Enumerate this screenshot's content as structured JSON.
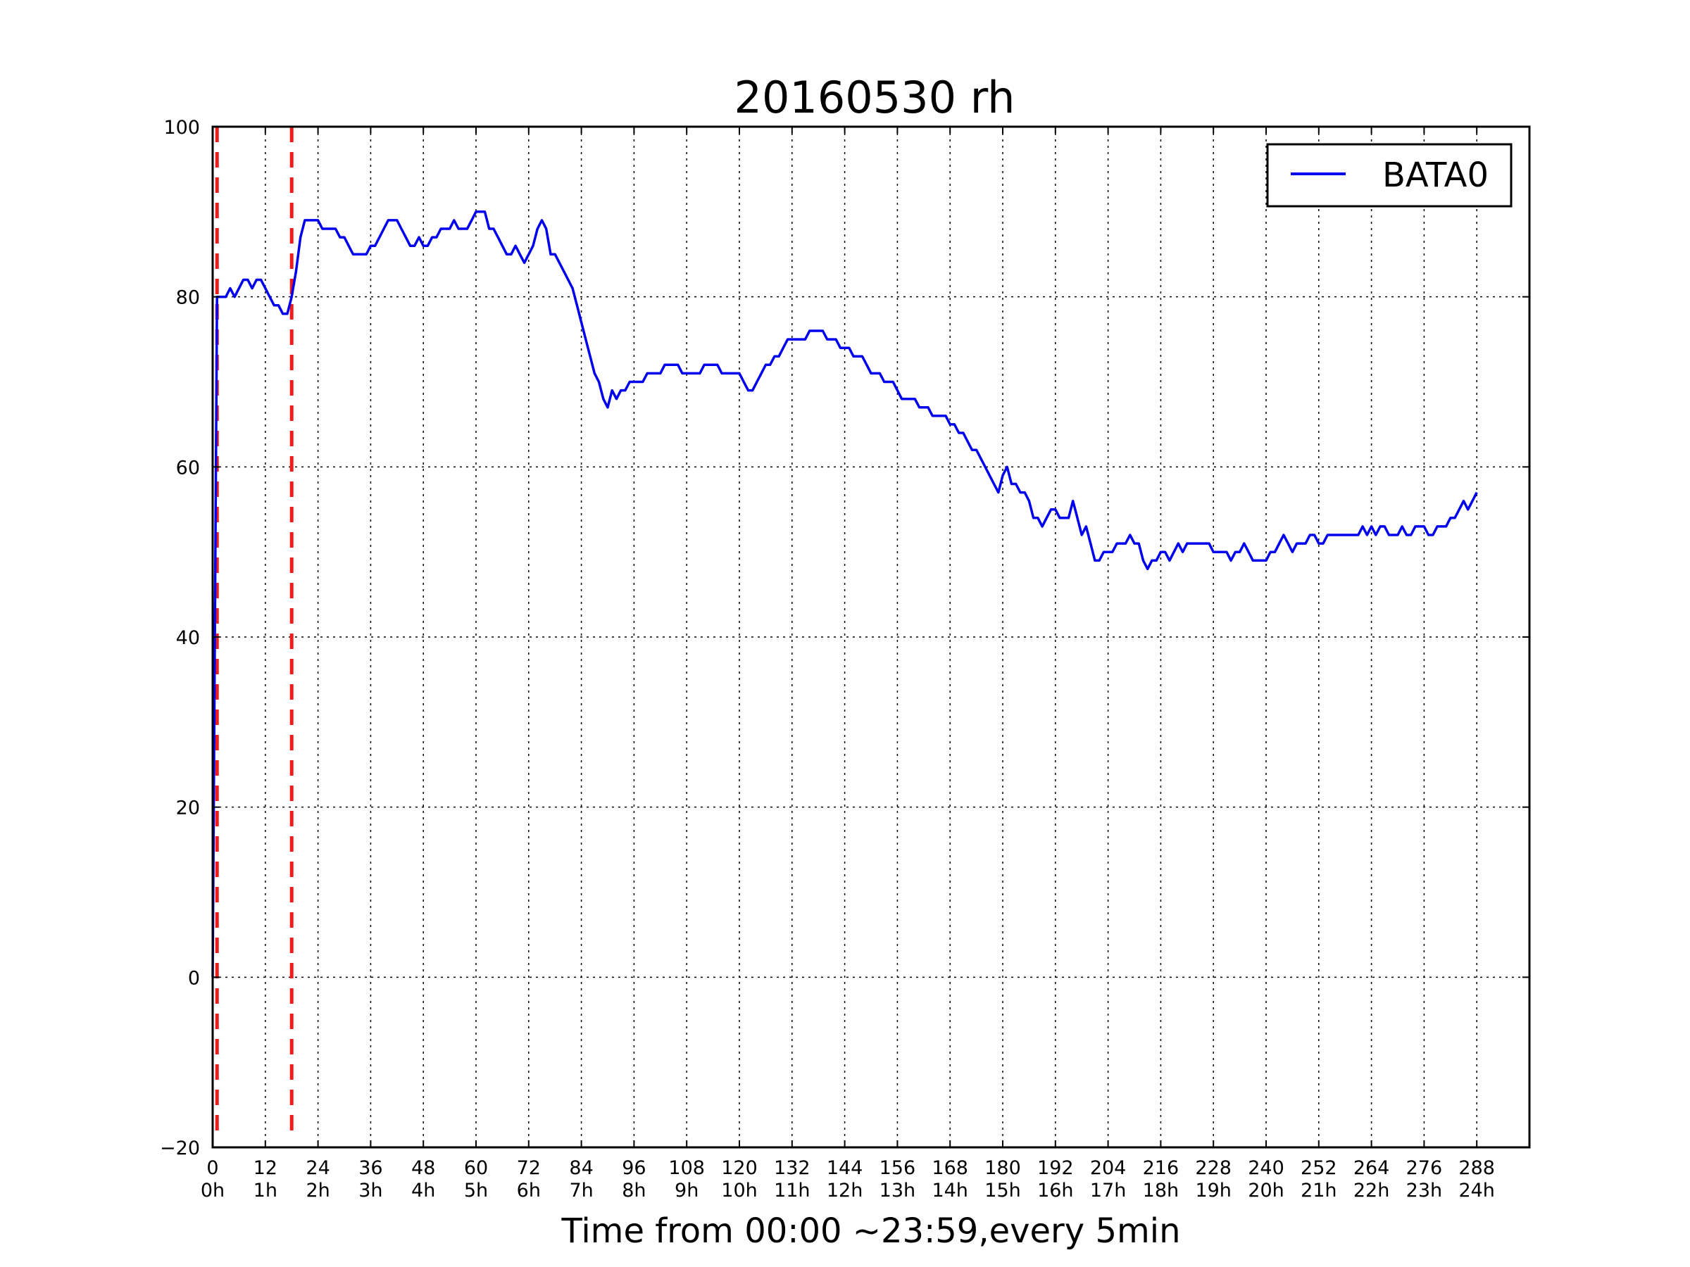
{
  "chart_data": {
    "type": "line",
    "title": "20160530 rh",
    "xlabel": "Time from 00:00 ~23:59,every 5min",
    "ylabel": "",
    "xlim": [
      0,
      300
    ],
    "ylim": [
      -20,
      100
    ],
    "grid": true,
    "legend": {
      "placement": "top-right"
    },
    "x_ticks": [
      {
        "value": 0,
        "label": "0",
        "sublabel": "0h"
      },
      {
        "value": 12,
        "label": "12",
        "sublabel": "1h"
      },
      {
        "value": 24,
        "label": "24",
        "sublabel": "2h"
      },
      {
        "value": 36,
        "label": "36",
        "sublabel": "3h"
      },
      {
        "value": 48,
        "label": "48",
        "sublabel": "4h"
      },
      {
        "value": 60,
        "label": "60",
        "sublabel": "5h"
      },
      {
        "value": 72,
        "label": "72",
        "sublabel": "6h"
      },
      {
        "value": 84,
        "label": "84",
        "sublabel": "7h"
      },
      {
        "value": 96,
        "label": "96",
        "sublabel": "8h"
      },
      {
        "value": 108,
        "label": "108",
        "sublabel": "9h"
      },
      {
        "value": 120,
        "label": "120",
        "sublabel": "10h"
      },
      {
        "value": 132,
        "label": "132",
        "sublabel": "11h"
      },
      {
        "value": 144,
        "label": "144",
        "sublabel": "12h"
      },
      {
        "value": 156,
        "label": "156",
        "sublabel": "13h"
      },
      {
        "value": 168,
        "label": "168",
        "sublabel": "14h"
      },
      {
        "value": 180,
        "label": "180",
        "sublabel": "15h"
      },
      {
        "value": 192,
        "label": "192",
        "sublabel": "16h"
      },
      {
        "value": 204,
        "label": "204",
        "sublabel": "17h"
      },
      {
        "value": 216,
        "label": "216",
        "sublabel": "18h"
      },
      {
        "value": 228,
        "label": "228",
        "sublabel": "19h"
      },
      {
        "value": 240,
        "label": "240",
        "sublabel": "20h"
      },
      {
        "value": 252,
        "label": "252",
        "sublabel": "21h"
      },
      {
        "value": 264,
        "label": "264",
        "sublabel": "22h"
      },
      {
        "value": 276,
        "label": "276",
        "sublabel": "23h"
      },
      {
        "value": 288,
        "label": "288",
        "sublabel": "24h"
      }
    ],
    "y_ticks": [
      {
        "value": -20,
        "label": "−20"
      },
      {
        "value": 0,
        "label": "0"
      },
      {
        "value": 20,
        "label": "20"
      },
      {
        "value": 40,
        "label": "40"
      },
      {
        "value": 60,
        "label": "60"
      },
      {
        "value": 80,
        "label": "80"
      },
      {
        "value": 100,
        "label": "100"
      }
    ],
    "vlines": [
      {
        "x": 1,
        "color": "#ee1c1c",
        "style": "dashed"
      },
      {
        "x": 18,
        "color": "#ee1c1c",
        "style": "dashed"
      }
    ],
    "series": [
      {
        "name": "BATA0",
        "color": "#0000ee",
        "points": [
          [
            0,
            0
          ],
          [
            1,
            80
          ],
          [
            2,
            80
          ],
          [
            3,
            80
          ],
          [
            4,
            81
          ],
          [
            5,
            80
          ],
          [
            6,
            81
          ],
          [
            7,
            82
          ],
          [
            8,
            82
          ],
          [
            9,
            81
          ],
          [
            10,
            82
          ],
          [
            11,
            82
          ],
          [
            12,
            81
          ],
          [
            13,
            80
          ],
          [
            14,
            79
          ],
          [
            15,
            79
          ],
          [
            16,
            78
          ],
          [
            17,
            78
          ],
          [
            18,
            80
          ],
          [
            19,
            83
          ],
          [
            20,
            87
          ],
          [
            21,
            89
          ],
          [
            22,
            89
          ],
          [
            23,
            89
          ],
          [
            24,
            89
          ],
          [
            25,
            88
          ],
          [
            26,
            88
          ],
          [
            27,
            88
          ],
          [
            28,
            88
          ],
          [
            29,
            87
          ],
          [
            30,
            87
          ],
          [
            31,
            86
          ],
          [
            32,
            85
          ],
          [
            33,
            85
          ],
          [
            34,
            85
          ],
          [
            35,
            85
          ],
          [
            36,
            86
          ],
          [
            37,
            86
          ],
          [
            38,
            87
          ],
          [
            39,
            88
          ],
          [
            40,
            89
          ],
          [
            41,
            89
          ],
          [
            42,
            89
          ],
          [
            43,
            88
          ],
          [
            44,
            87
          ],
          [
            45,
            86
          ],
          [
            46,
            86
          ],
          [
            47,
            87
          ],
          [
            48,
            86
          ],
          [
            49,
            86
          ],
          [
            50,
            87
          ],
          [
            51,
            87
          ],
          [
            52,
            88
          ],
          [
            53,
            88
          ],
          [
            54,
            88
          ],
          [
            55,
            89
          ],
          [
            56,
            88
          ],
          [
            57,
            88
          ],
          [
            58,
            88
          ],
          [
            59,
            89
          ],
          [
            60,
            90
          ],
          [
            61,
            90
          ],
          [
            62,
            90
          ],
          [
            63,
            88
          ],
          [
            64,
            88
          ],
          [
            65,
            87
          ],
          [
            66,
            86
          ],
          [
            67,
            85
          ],
          [
            68,
            85
          ],
          [
            69,
            86
          ],
          [
            70,
            85
          ],
          [
            71,
            84
          ],
          [
            72,
            85
          ],
          [
            73,
            86
          ],
          [
            74,
            88
          ],
          [
            75,
            89
          ],
          [
            76,
            88
          ],
          [
            77,
            85
          ],
          [
            78,
            85
          ],
          [
            79,
            84
          ],
          [
            80,
            83
          ],
          [
            81,
            82
          ],
          [
            82,
            81
          ],
          [
            83,
            79
          ],
          [
            84,
            77
          ],
          [
            85,
            75
          ],
          [
            86,
            73
          ],
          [
            87,
            71
          ],
          [
            88,
            70
          ],
          [
            89,
            68
          ],
          [
            90,
            67
          ],
          [
            91,
            69
          ],
          [
            92,
            68
          ],
          [
            93,
            69
          ],
          [
            94,
            69
          ],
          [
            95,
            70
          ],
          [
            96,
            70
          ],
          [
            97,
            70
          ],
          [
            98,
            70
          ],
          [
            99,
            71
          ],
          [
            100,
            71
          ],
          [
            101,
            71
          ],
          [
            102,
            71
          ],
          [
            103,
            72
          ],
          [
            104,
            72
          ],
          [
            105,
            72
          ],
          [
            106,
            72
          ],
          [
            107,
            71
          ],
          [
            108,
            71
          ],
          [
            109,
            71
          ],
          [
            110,
            71
          ],
          [
            111,
            71
          ],
          [
            112,
            72
          ],
          [
            113,
            72
          ],
          [
            114,
            72
          ],
          [
            115,
            72
          ],
          [
            116,
            71
          ],
          [
            117,
            71
          ],
          [
            118,
            71
          ],
          [
            119,
            71
          ],
          [
            120,
            71
          ],
          [
            121,
            70
          ],
          [
            122,
            69
          ],
          [
            123,
            69
          ],
          [
            124,
            70
          ],
          [
            125,
            71
          ],
          [
            126,
            72
          ],
          [
            127,
            72
          ],
          [
            128,
            73
          ],
          [
            129,
            73
          ],
          [
            130,
            74
          ],
          [
            131,
            75
          ],
          [
            132,
            75
          ],
          [
            133,
            75
          ],
          [
            134,
            75
          ],
          [
            135,
            75
          ],
          [
            136,
            76
          ],
          [
            137,
            76
          ],
          [
            138,
            76
          ],
          [
            139,
            76
          ],
          [
            140,
            75
          ],
          [
            141,
            75
          ],
          [
            142,
            75
          ],
          [
            143,
            74
          ],
          [
            144,
            74
          ],
          [
            145,
            74
          ],
          [
            146,
            73
          ],
          [
            147,
            73
          ],
          [
            148,
            73
          ],
          [
            149,
            72
          ],
          [
            150,
            71
          ],
          [
            151,
            71
          ],
          [
            152,
            71
          ],
          [
            153,
            70
          ],
          [
            154,
            70
          ],
          [
            155,
            70
          ],
          [
            156,
            69
          ],
          [
            157,
            68
          ],
          [
            158,
            68
          ],
          [
            159,
            68
          ],
          [
            160,
            68
          ],
          [
            161,
            67
          ],
          [
            162,
            67
          ],
          [
            163,
            67
          ],
          [
            164,
            66
          ],
          [
            165,
            66
          ],
          [
            166,
            66
          ],
          [
            167,
            66
          ],
          [
            168,
            65
          ],
          [
            169,
            65
          ],
          [
            170,
            64
          ],
          [
            171,
            64
          ],
          [
            172,
            63
          ],
          [
            173,
            62
          ],
          [
            174,
            62
          ],
          [
            175,
            61
          ],
          [
            176,
            60
          ],
          [
            177,
            59
          ],
          [
            178,
            58
          ],
          [
            179,
            57
          ],
          [
            180,
            59
          ],
          [
            181,
            60
          ],
          [
            182,
            58
          ],
          [
            183,
            58
          ],
          [
            184,
            57
          ],
          [
            185,
            57
          ],
          [
            186,
            56
          ],
          [
            187,
            54
          ],
          [
            188,
            54
          ],
          [
            189,
            53
          ],
          [
            190,
            54
          ],
          [
            191,
            55
          ],
          [
            192,
            55
          ],
          [
            193,
            54
          ],
          [
            194,
            54
          ],
          [
            195,
            54
          ],
          [
            196,
            56
          ],
          [
            197,
            54
          ],
          [
            198,
            52
          ],
          [
            199,
            53
          ],
          [
            200,
            51
          ],
          [
            201,
            49
          ],
          [
            202,
            49
          ],
          [
            203,
            50
          ],
          [
            204,
            50
          ],
          [
            205,
            50
          ],
          [
            206,
            51
          ],
          [
            207,
            51
          ],
          [
            208,
            51
          ],
          [
            209,
            52
          ],
          [
            210,
            51
          ],
          [
            211,
            51
          ],
          [
            212,
            49
          ],
          [
            213,
            48
          ],
          [
            214,
            49
          ],
          [
            215,
            49
          ],
          [
            216,
            50
          ],
          [
            217,
            50
          ],
          [
            218,
            49
          ],
          [
            219,
            50
          ],
          [
            220,
            51
          ],
          [
            221,
            50
          ],
          [
            222,
            51
          ],
          [
            223,
            51
          ],
          [
            224,
            51
          ],
          [
            225,
            51
          ],
          [
            226,
            51
          ],
          [
            227,
            51
          ],
          [
            228,
            50
          ],
          [
            229,
            50
          ],
          [
            230,
            50
          ],
          [
            231,
            50
          ],
          [
            232,
            49
          ],
          [
            233,
            50
          ],
          [
            234,
            50
          ],
          [
            235,
            51
          ],
          [
            236,
            50
          ],
          [
            237,
            49
          ],
          [
            238,
            49
          ],
          [
            239,
            49
          ],
          [
            240,
            49
          ],
          [
            241,
            50
          ],
          [
            242,
            50
          ],
          [
            243,
            51
          ],
          [
            244,
            52
          ],
          [
            245,
            51
          ],
          [
            246,
            50
          ],
          [
            247,
            51
          ],
          [
            248,
            51
          ],
          [
            249,
            51
          ],
          [
            250,
            52
          ],
          [
            251,
            52
          ],
          [
            252,
            51
          ],
          [
            253,
            51
          ],
          [
            254,
            52
          ],
          [
            255,
            52
          ],
          [
            256,
            52
          ],
          [
            257,
            52
          ],
          [
            258,
            52
          ],
          [
            259,
            52
          ],
          [
            260,
            52
          ],
          [
            261,
            52
          ],
          [
            262,
            53
          ],
          [
            263,
            52
          ],
          [
            264,
            53
          ],
          [
            265,
            52
          ],
          [
            266,
            53
          ],
          [
            267,
            53
          ],
          [
            268,
            52
          ],
          [
            269,
            52
          ],
          [
            270,
            52
          ],
          [
            271,
            53
          ],
          [
            272,
            52
          ],
          [
            273,
            52
          ],
          [
            274,
            53
          ],
          [
            275,
            53
          ],
          [
            276,
            53
          ],
          [
            277,
            52
          ],
          [
            278,
            52
          ],
          [
            279,
            53
          ],
          [
            280,
            53
          ],
          [
            281,
            53
          ],
          [
            282,
            54
          ],
          [
            283,
            54
          ],
          [
            284,
            55
          ],
          [
            285,
            56
          ],
          [
            286,
            55
          ],
          [
            287,
            56
          ],
          [
            288,
            57
          ]
        ]
      }
    ]
  }
}
